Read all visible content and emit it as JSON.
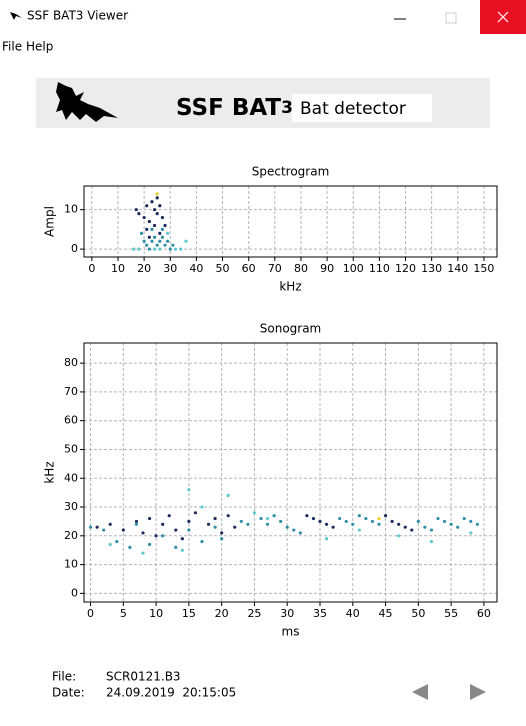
{
  "window": {
    "title": "SSF BAT3 Viewer"
  },
  "menu": [
    "File",
    "Help"
  ],
  "banner": {
    "brand": "SSF BAT",
    "brand_suffix": "3",
    "subtitle": "Bat detector"
  },
  "chart_data": [
    {
      "type": "scatter",
      "title": "Spectrogram",
      "x_label": "kHz",
      "y_label": "Ampl",
      "xlim": [
        -3,
        155
      ],
      "ylim": [
        -2,
        16
      ],
      "xticks": [
        0,
        10,
        20,
        30,
        40,
        50,
        60,
        70,
        80,
        90,
        100,
        110,
        120,
        130,
        140,
        150
      ],
      "yticks": [
        0,
        10
      ],
      "grid": true,
      "series": [
        {
          "color": "#1c2a5c",
          "x": [
            17,
            18,
            20,
            21,
            22,
            23,
            24,
            24,
            25,
            26,
            26,
            27,
            28,
            22,
            21,
            25
          ],
          "values": [
            10,
            9,
            8,
            11,
            7,
            12,
            10,
            6,
            9,
            11,
            4,
            8,
            6,
            3,
            5,
            13
          ]
        },
        {
          "color": "#2f8fa8",
          "x": [
            19,
            20,
            21,
            22,
            23,
            24,
            25,
            26,
            27,
            28,
            29,
            30,
            31,
            23,
            27
          ],
          "values": [
            4,
            2,
            1,
            0,
            2,
            3,
            1,
            2,
            3,
            1,
            2,
            0,
            1,
            5,
            5
          ]
        },
        {
          "color": "#5fc9cf",
          "x": [
            16,
            18,
            24,
            26,
            32,
            34,
            36,
            29
          ],
          "values": [
            0,
            0,
            0,
            0,
            0,
            0,
            2,
            4
          ]
        },
        {
          "color": "#e8d21a",
          "x": [
            25
          ],
          "values": [
            14
          ]
        }
      ]
    },
    {
      "type": "scatter",
      "title": "Sonogram",
      "x_label": "ms",
      "y_label": "kHz",
      "xlim": [
        -1,
        62
      ],
      "ylim": [
        -3,
        87
      ],
      "xticks": [
        0,
        5,
        10,
        15,
        20,
        25,
        30,
        35,
        40,
        45,
        50,
        55,
        60
      ],
      "yticks": [
        0,
        10,
        20,
        30,
        40,
        50,
        60,
        70,
        80
      ],
      "grid": true,
      "series": [
        {
          "color": "#1c2a5c",
          "x": [
            1,
            3,
            5,
            7,
            8,
            9,
            10,
            11,
            12,
            13,
            14,
            15,
            16,
            18,
            19,
            20,
            21,
            22,
            33,
            34,
            35,
            36,
            37,
            45,
            46,
            47,
            48,
            49
          ],
          "values": [
            23,
            24,
            22,
            25,
            21,
            26,
            20,
            24,
            27,
            22,
            19,
            25,
            28,
            24,
            26,
            21,
            27,
            23,
            27,
            26,
            25,
            24,
            23,
            27,
            25,
            24,
            23,
            22
          ]
        },
        {
          "color": "#2f8fa8",
          "x": [
            0,
            2,
            4,
            6,
            7,
            9,
            11,
            13,
            15,
            17,
            19,
            20,
            23,
            24,
            26,
            27,
            28,
            29,
            30,
            31,
            32,
            38,
            39,
            40,
            41,
            42,
            43,
            44,
            50,
            51,
            52,
            53,
            54,
            55,
            56,
            57,
            58,
            59
          ],
          "values": [
            23,
            22,
            18,
            16,
            24,
            17,
            20,
            16,
            22,
            18,
            23,
            19,
            25,
            24,
            26,
            24,
            27,
            25,
            23,
            22,
            21,
            26,
            25,
            24,
            27,
            26,
            25,
            24,
            25,
            23,
            22,
            26,
            25,
            24,
            23,
            26,
            25,
            24
          ]
        },
        {
          "color": "#5fc9cf",
          "x": [
            3,
            8,
            14,
            15,
            17,
            21,
            25,
            27,
            36,
            41,
            47,
            52,
            58
          ],
          "values": [
            17,
            14,
            15,
            36,
            30,
            34,
            28,
            26,
            19,
            22,
            20,
            18,
            21
          ]
        },
        {
          "color": "#e8d21a",
          "x": [
            44
          ],
          "values": [
            26
          ]
        }
      ]
    }
  ],
  "footer": {
    "file_label": "File:",
    "file": "SCR0121.B3",
    "date_label": "Date:",
    "date": "24.09.2019  20:15:05"
  }
}
